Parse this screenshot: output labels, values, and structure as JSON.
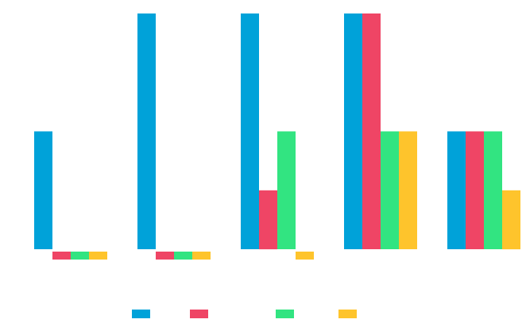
{
  "chart_data": {
    "type": "bar",
    "title": "",
    "xlabel": "",
    "ylabel": "",
    "categories": [
      "",
      "",
      "",
      "",
      ""
    ],
    "ylim": [
      0,
      2
    ],
    "grid": false,
    "legend": "bottom-center",
    "series": [
      {
        "name": "",
        "color": "#00a2d9",
        "values": [
          1,
          2,
          2,
          2,
          1
        ]
      },
      {
        "name": "",
        "color": "#ef4565",
        "values": [
          0,
          0,
          0.5,
          2,
          1
        ]
      },
      {
        "name": "",
        "color": "#32e481",
        "values": [
          0,
          0,
          1,
          1,
          1
        ]
      },
      {
        "name": "",
        "color": "#fec42c",
        "values": [
          0,
          0,
          0,
          1,
          0.5
        ]
      }
    ]
  }
}
